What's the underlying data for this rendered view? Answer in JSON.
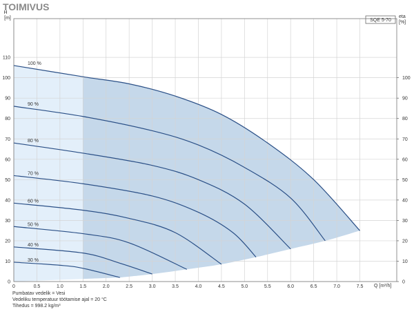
{
  "chart_data": {
    "type": "line",
    "title": "TOIMIVUS",
    "product": "SQE 5-70",
    "y_label": "H",
    "y_unit": "[m]",
    "y2_label": "eta",
    "y2_unit": "[%]",
    "x_label": "Q [m³/h]",
    "notes": [
      "Pumbatav vedelik = Vesi",
      "Vedeliku temperatuur töötamise ajal = 20 °C",
      "Tihedus = 998.2 kg/m³"
    ],
    "xlim": [
      0,
      8.3
    ],
    "xticks": [
      0,
      0.5,
      {
        "value": 1,
        "label": "1.0"
      },
      1.5,
      {
        "value": 2,
        "label": "2.0"
      },
      2.5,
      {
        "value": 3,
        "label": "3.0"
      },
      3.5,
      {
        "value": 4,
        "label": "4.0"
      },
      4.5,
      {
        "value": 5,
        "label": "5.0"
      },
      5.5,
      {
        "value": 6,
        "label": "6.0"
      },
      6.5,
      {
        "value": 7,
        "label": "7.0"
      },
      7.5
    ],
    "ylim": [
      0,
      129
    ],
    "yticks": [
      0,
      10,
      20,
      30,
      40,
      50,
      60,
      70,
      80,
      90,
      100,
      110
    ],
    "y2lim": [
      0,
      129
    ],
    "y2ticks": [
      0,
      10,
      20,
      30,
      40,
      50,
      60,
      70,
      80,
      90,
      100
    ],
    "grid": true,
    "color": "#2a4f86",
    "region_color": "#e3effa",
    "highlight_color": "#c5d8ea",
    "highlight_xmin": 1.5,
    "series": [
      {
        "name": "100 %",
        "x": [
          0,
          1.5,
          2.5,
          3.5,
          4.5,
          5.5,
          6.5,
          7.5
        ],
        "values": [
          106,
          100.5,
          97,
          91,
          82,
          68,
          50,
          25
        ]
      },
      {
        "name": "90 %",
        "x": [
          0,
          1.5,
          3,
          4,
          5,
          6,
          6.75
        ],
        "values": [
          86,
          81,
          74,
          67,
          56,
          41,
          20
        ]
      },
      {
        "name": "80 %",
        "x": [
          0,
          1.5,
          3,
          4,
          5,
          6
        ],
        "values": [
          68,
          63,
          57,
          50,
          38,
          16
        ]
      },
      {
        "name": "70 %",
        "x": [
          0,
          1.5,
          3,
          4,
          4.75,
          5.25
        ],
        "values": [
          52,
          48,
          42,
          34,
          24,
          12
        ]
      },
      {
        "name": "60 %",
        "x": [
          0,
          1.5,
          2.5,
          3.5,
          4.5
        ],
        "values": [
          38.5,
          35,
          31,
          24,
          8.5
        ]
      },
      {
        "name": "50 %",
        "x": [
          0,
          1.5,
          2.5,
          3.75
        ],
        "values": [
          27,
          23.5,
          19,
          6
        ]
      },
      {
        "name": "40 %",
        "x": [
          0,
          1.5,
          2.3,
          3
        ],
        "values": [
          17,
          14,
          9,
          3.7
        ]
      },
      {
        "name": "30 %",
        "x": [
          0,
          1,
          1.5,
          2.3
        ],
        "values": [
          9.5,
          8,
          6.5,
          2
        ]
      }
    ]
  }
}
